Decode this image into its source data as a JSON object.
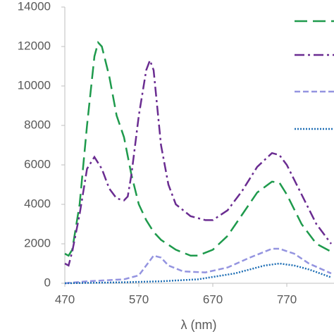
{
  "chart_data": {
    "type": "line",
    "x_label": "λ (nm)",
    "xlim": [
      470,
      830
    ],
    "xticks": [
      470,
      570,
      670,
      770
    ],
    "ylim": [
      0,
      14000
    ],
    "yticks": [
      0,
      2000,
      4000,
      6000,
      8000,
      10000,
      12000,
      14000
    ],
    "grid": false,
    "legend": "top-right",
    "series": [
      {
        "color": "#1e9a4c",
        "dash": "18 8",
        "x": [
          470,
          475,
          480,
          490,
          500,
          510,
          515,
          520,
          530,
          540,
          550,
          560,
          570,
          580,
          590,
          600,
          620,
          640,
          650,
          670,
          690,
          710,
          730,
          750,
          760,
          770,
          790,
          810,
          830
        ],
        "values": [
          1500,
          1400,
          1700,
          4000,
          8000,
          11500,
          12200,
          12000,
          10500,
          8500,
          7400,
          5500,
          4000,
          3200,
          2600,
          2200,
          1700,
          1400,
          1400,
          1700,
          2400,
          3500,
          4600,
          5150,
          5100,
          4500,
          3000,
          2000,
          1600
        ]
      },
      {
        "color": "#6a2c91",
        "dash": "14 5 3 5",
        "x": [
          470,
          475,
          480,
          490,
          500,
          510,
          520,
          530,
          540,
          550,
          555,
          560,
          570,
          580,
          585,
          590,
          600,
          610,
          620,
          640,
          660,
          670,
          690,
          710,
          730,
          750,
          760,
          770,
          790,
          810,
          830
        ],
        "values": [
          1000,
          900,
          1600,
          3500,
          5800,
          6400,
          5800,
          4800,
          4300,
          4200,
          4400,
          5500,
          8500,
          10800,
          11300,
          10800,
          7000,
          5000,
          4000,
          3400,
          3200,
          3200,
          3700,
          4700,
          5900,
          6600,
          6500,
          6000,
          4500,
          3000,
          2000
        ]
      },
      {
        "color": "#9494e0",
        "dash": "8 4",
        "x": [
          470,
          500,
          550,
          570,
          580,
          590,
          600,
          610,
          630,
          660,
          690,
          720,
          750,
          760,
          780,
          800,
          830
        ],
        "values": [
          0,
          100,
          200,
          400,
          900,
          1400,
          1300,
          900,
          600,
          550,
          800,
          1300,
          1750,
          1750,
          1500,
          1000,
          500
        ]
      },
      {
        "color": "#1f6fb5",
        "dash": "2 2",
        "x": [
          470,
          550,
          600,
          650,
          700,
          740,
          760,
          780,
          800,
          830
        ],
        "values": [
          0,
          50,
          100,
          200,
          500,
          900,
          1000,
          900,
          700,
          300
        ]
      }
    ]
  }
}
